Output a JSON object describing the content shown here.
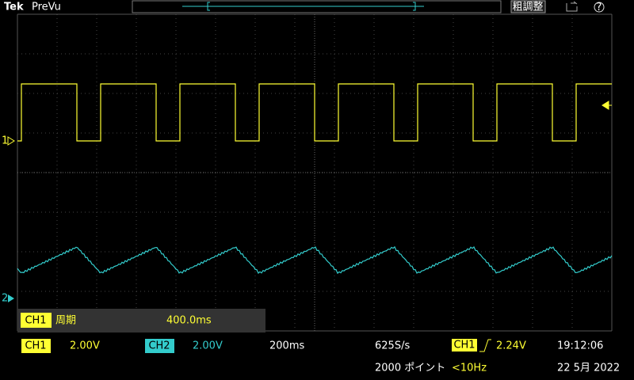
{
  "header": {
    "brand": "Tek",
    "mode": "PreVu",
    "button": "粗調整",
    "help": "?"
  },
  "channel_markers": [
    "1",
    "2"
  ],
  "measurement": {
    "channel": "CH1",
    "name": "周期",
    "value": "400.0ms"
  },
  "status": {
    "ch1": {
      "label": "CH1",
      "scale": "2.00V"
    },
    "ch2": {
      "label": "CH2",
      "scale": "2.00V"
    },
    "timebase": "200ms",
    "sample_rate": "625S/s",
    "record_length": "2000 ポイント",
    "trigger": {
      "source": "CH1",
      "level": "2.24V",
      "frequency": "<10Hz"
    },
    "time": "19:12:06",
    "date": "22 5月 2022"
  }
}
